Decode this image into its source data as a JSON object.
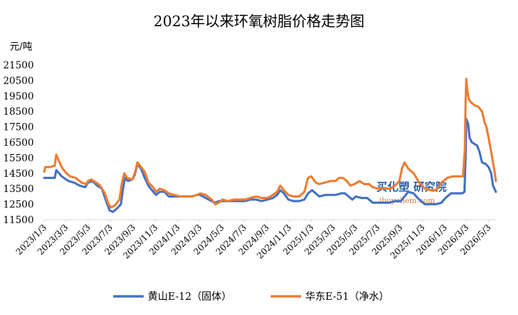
{
  "chart_data": {
    "type": "line",
    "title": "2023年以来环氧树脂价格走势图",
    "ylabel": "元/吨",
    "xlabel": "",
    "ylim": [
      11500,
      21500
    ],
    "yticks": [
      11500,
      12500,
      13500,
      14500,
      15500,
      16500,
      17500,
      18500,
      19500,
      20500,
      21500
    ],
    "xticks": [
      "2023/1/3",
      "2023/3/3",
      "2023/5/3",
      "2023/7/3",
      "2023/9/3",
      "2023/11/3",
      "2024/1/3",
      "2024/3/3",
      "2024/5/3",
      "2024/7/3",
      "2024/9/3",
      "2024/11/3",
      "2025/1/3",
      "2025/3/3",
      "2025/5/3",
      "2025/7/3",
      "2025/9/3",
      "2025/11/3",
      "2026/1/3",
      "2026/3/3",
      "2026/5/3"
    ],
    "x_end": "2026/5/23",
    "grid": false,
    "legend": "bottom",
    "watermark": {
      "cn": "买化塑 研究院",
      "en": "ibuychem.com"
    },
    "series": [
      {
        "name": "黄山E-12（固体）",
        "color": "#4472c4",
        "points": [
          [
            "2023/1/3",
            14200
          ],
          [
            "2023/1/15",
            14200
          ],
          [
            "2023/2/1",
            14200
          ],
          [
            "2023/2/5",
            14700
          ],
          [
            "2023/2/20",
            14300
          ],
          [
            "2023/3/10",
            14000
          ],
          [
            "2023/3/25",
            13900
          ],
          [
            "2023/4/10",
            13700
          ],
          [
            "2023/4/25",
            13600
          ],
          [
            "2023/5/3",
            13900
          ],
          [
            "2023/5/15",
            14000
          ],
          [
            "2023/5/28",
            13700
          ],
          [
            "2023/6/10",
            13500
          ],
          [
            "2023/6/20",
            12800
          ],
          [
            "2023/7/1",
            12100
          ],
          [
            "2023/7/10",
            12000
          ],
          [
            "2023/7/20",
            12200
          ],
          [
            "2023/8/1",
            12500
          ],
          [
            "2023/8/6",
            13400
          ],
          [
            "2023/8/12",
            14200
          ],
          [
            "2023/8/20",
            14000
          ],
          [
            "2023/9/1",
            14100
          ],
          [
            "2023/9/8",
            14400
          ],
          [
            "2023/9/15",
            15100
          ],
          [
            "2023/9/25",
            14800
          ],
          [
            "2023/10/5",
            14200
          ],
          [
            "2023/10/15",
            13700
          ],
          [
            "2023/10/25",
            13400
          ],
          [
            "2023/11/5",
            13100
          ],
          [
            "2023/11/15",
            13300
          ],
          [
            "2023/11/28",
            13300
          ],
          [
            "2023/12/10",
            13000
          ],
          [
            "2023/12/25",
            13000
          ],
          [
            "2024/1/10",
            13000
          ],
          [
            "2024/1/25",
            13000
          ],
          [
            "2024/2/10",
            13000
          ],
          [
            "2024/2/25",
            13100
          ],
          [
            "2024/3/5",
            13100
          ],
          [
            "2024/3/20",
            12900
          ],
          [
            "2024/4/5",
            12700
          ],
          [
            "2024/4/15",
            12600
          ],
          [
            "2024/4/25",
            12700
          ],
          [
            "2024/5/5",
            12700
          ],
          [
            "2024/5/20",
            12700
          ],
          [
            "2024/6/5",
            12700
          ],
          [
            "2024/6/20",
            12700
          ],
          [
            "2024/7/5",
            12700
          ],
          [
            "2024/7/20",
            12800
          ],
          [
            "2024/8/5",
            12800
          ],
          [
            "2024/8/20",
            12700
          ],
          [
            "2024/9/5",
            12800
          ],
          [
            "2024/9/20",
            12900
          ],
          [
            "2024/10/1",
            13100
          ],
          [
            "2024/10/10",
            13400
          ],
          [
            "2024/10/20",
            13200
          ],
          [
            "2024/11/1",
            12800
          ],
          [
            "2024/11/15",
            12700
          ],
          [
            "2024/12/1",
            12700
          ],
          [
            "2024/12/15",
            12800
          ],
          [
            "2024/12/25",
            13200
          ],
          [
            "2025/1/5",
            13400
          ],
          [
            "2025/1/15",
            13200
          ],
          [
            "2025/1/25",
            13000
          ],
          [
            "2025/2/10",
            13100
          ],
          [
            "2025/2/25",
            13100
          ],
          [
            "2025/3/10",
            13100
          ],
          [
            "2025/3/25",
            13200
          ],
          [
            "2025/4/5",
            13200
          ],
          [
            "2025/4/15",
            13000
          ],
          [
            "2025/4/25",
            12800
          ],
          [
            "2025/5/5",
            13000
          ],
          [
            "2025/5/20",
            12900
          ],
          [
            "2025/6/5",
            12900
          ],
          [
            "2025/6/20",
            12600
          ],
          [
            "2025/7/5",
            12600
          ],
          [
            "2025/7/20",
            12600
          ],
          [
            "2025/8/5",
            12600
          ],
          [
            "2025/8/20",
            12700
          ],
          [
            "2025/9/5",
            12700
          ],
          [
            "2025/9/15",
            13000
          ],
          [
            "2025/9/25",
            13300
          ],
          [
            "2025/10/10",
            13200
          ],
          [
            "2025/10/25",
            12800
          ],
          [
            "2025/11/10",
            12500
          ],
          [
            "2025/11/25",
            12500
          ],
          [
            "2025/12/10",
            12500
          ],
          [
            "2025/12/25",
            12600
          ],
          [
            "2026/1/5",
            12900
          ],
          [
            "2026/1/20",
            13200
          ],
          [
            "2026/2/5",
            13200
          ],
          [
            "2026/2/20",
            13200
          ],
          [
            "2026/2/26",
            13300
          ],
          [
            "2026/3/1",
            15500
          ],
          [
            "2026/3/3",
            18000
          ],
          [
            "2026/3/8",
            17700
          ],
          [
            "2026/3/12",
            16800
          ],
          [
            "2026/3/18",
            16500
          ],
          [
            "2026/3/25",
            16400
          ],
          [
            "2026/4/1",
            16300
          ],
          [
            "2026/4/8",
            15900
          ],
          [
            "2026/4/15",
            15200
          ],
          [
            "2026/4/25",
            15100
          ],
          [
            "2026/5/3",
            14900
          ],
          [
            "2026/5/10",
            14500
          ],
          [
            "2026/5/15",
            13700
          ],
          [
            "2026/5/23",
            13300
          ]
        ]
      },
      {
        "name": "华东E-51（净水）",
        "color": "#ed7d31",
        "points": [
          [
            "2023/1/3",
            14600
          ],
          [
            "2023/1/6",
            14900
          ],
          [
            "2023/1/20",
            14900
          ],
          [
            "2023/2/1",
            15000
          ],
          [
            "2023/2/5",
            15700
          ],
          [
            "2023/2/12",
            15300
          ],
          [
            "2023/2/22",
            14800
          ],
          [
            "2023/3/5",
            14500
          ],
          [
            "2023/3/15",
            14300
          ],
          [
            "2023/3/30",
            14200
          ],
          [
            "2023/4/15",
            13900
          ],
          [
            "2023/4/28",
            13800
          ],
          [
            "2023/5/3",
            14000
          ],
          [
            "2023/5/12",
            14100
          ],
          [
            "2023/5/25",
            13900
          ],
          [
            "2023/6/5",
            13700
          ],
          [
            "2023/6/18",
            13200
          ],
          [
            "2023/6/28",
            12500
          ],
          [
            "2023/7/5",
            12300
          ],
          [
            "2023/7/15",
            12400
          ],
          [
            "2023/7/28",
            12800
          ],
          [
            "2023/8/3",
            13800
          ],
          [
            "2023/8/10",
            14500
          ],
          [
            "2023/8/18",
            14200
          ],
          [
            "2023/9/1",
            14100
          ],
          [
            "2023/9/8",
            14500
          ],
          [
            "2023/9/15",
            15200
          ],
          [
            "2023/9/25",
            14900
          ],
          [
            "2023/10/5",
            14600
          ],
          [
            "2023/10/15",
            13900
          ],
          [
            "2023/10/28",
            13600
          ],
          [
            "2023/11/5",
            13300
          ],
          [
            "2023/11/15",
            13500
          ],
          [
            "2023/11/28",
            13400
          ],
          [
            "2023/12/10",
            13200
          ],
          [
            "2023/12/25",
            13100
          ],
          [
            "2024/1/10",
            13000
          ],
          [
            "2024/1/25",
            13000
          ],
          [
            "2024/2/10",
            13000
          ],
          [
            "2024/2/25",
            13100
          ],
          [
            "2024/3/5",
            13200
          ],
          [
            "2024/3/20",
            13100
          ],
          [
            "2024/4/5",
            12800
          ],
          [
            "2024/4/15",
            12500
          ],
          [
            "2024/4/25",
            12600
          ],
          [
            "2024/5/5",
            12800
          ],
          [
            "2024/5/20",
            12700
          ],
          [
            "2024/6/5",
            12800
          ],
          [
            "2024/6/20",
            12800
          ],
          [
            "2024/7/5",
            12800
          ],
          [
            "2024/7/20",
            12900
          ],
          [
            "2024/8/5",
            13000
          ],
          [
            "2024/8/20",
            12900
          ],
          [
            "2024/9/5",
            12900
          ],
          [
            "2024/9/20",
            13100
          ],
          [
            "2024/10/1",
            13300
          ],
          [
            "2024/10/10",
            13700
          ],
          [
            "2024/10/20",
            13400
          ],
          [
            "2024/11/1",
            13100
          ],
          [
            "2024/11/15",
            13000
          ],
          [
            "2024/12/1",
            13000
          ],
          [
            "2024/12/15",
            13300
          ],
          [
            "2024/12/25",
            14200
          ],
          [
            "2025/1/3",
            14300
          ],
          [
            "2025/1/15",
            13900
          ],
          [
            "2025/1/25",
            13800
          ],
          [
            "2025/2/10",
            13900
          ],
          [
            "2025/2/25",
            14000
          ],
          [
            "2025/3/10",
            14000
          ],
          [
            "2025/3/20",
            14200
          ],
          [
            "2025/3/30",
            14200
          ],
          [
            "2025/4/10",
            14000
          ],
          [
            "2025/4/20",
            13700
          ],
          [
            "2025/5/1",
            13800
          ],
          [
            "2025/5/15",
            14000
          ],
          [
            "2025/5/28",
            13800
          ],
          [
            "2025/6/10",
            13800
          ],
          [
            "2025/6/20",
            13600
          ],
          [
            "2025/7/5",
            13500
          ],
          [
            "2025/7/20",
            13500
          ],
          [
            "2025/8/5",
            13500
          ],
          [
            "2025/8/20",
            13700
          ],
          [
            "2025/9/1",
            14000
          ],
          [
            "2025/9/8",
            14800
          ],
          [
            "2025/9/15",
            15200
          ],
          [
            "2025/9/25",
            14800
          ],
          [
            "2025/10/10",
            14500
          ],
          [
            "2025/10/25",
            13900
          ],
          [
            "2025/11/10",
            13500
          ],
          [
            "2025/11/25",
            13400
          ],
          [
            "2025/12/10",
            13400
          ],
          [
            "2025/12/25",
            13900
          ],
          [
            "2026/1/10",
            14200
          ],
          [
            "2026/1/25",
            14300
          ],
          [
            "2026/2/10",
            14300
          ],
          [
            "2026/2/22",
            14300
          ],
          [
            "2026/2/27",
            16000
          ],
          [
            "2026/3/1",
            19000
          ],
          [
            "2026/3/3",
            20600
          ],
          [
            "2026/3/6",
            19800
          ],
          [
            "2026/3/10",
            19300
          ],
          [
            "2026/3/15",
            19100
          ],
          [
            "2026/3/25",
            18900
          ],
          [
            "2026/4/5",
            18800
          ],
          [
            "2026/4/15",
            18500
          ],
          [
            "2026/4/22",
            17800
          ],
          [
            "2026/4/27",
            17500
          ],
          [
            "2026/5/3",
            16800
          ],
          [
            "2026/5/10",
            15900
          ],
          [
            "2026/5/15",
            15200
          ],
          [
            "2026/5/20",
            14500
          ],
          [
            "2026/5/23",
            14000
          ]
        ]
      }
    ]
  }
}
